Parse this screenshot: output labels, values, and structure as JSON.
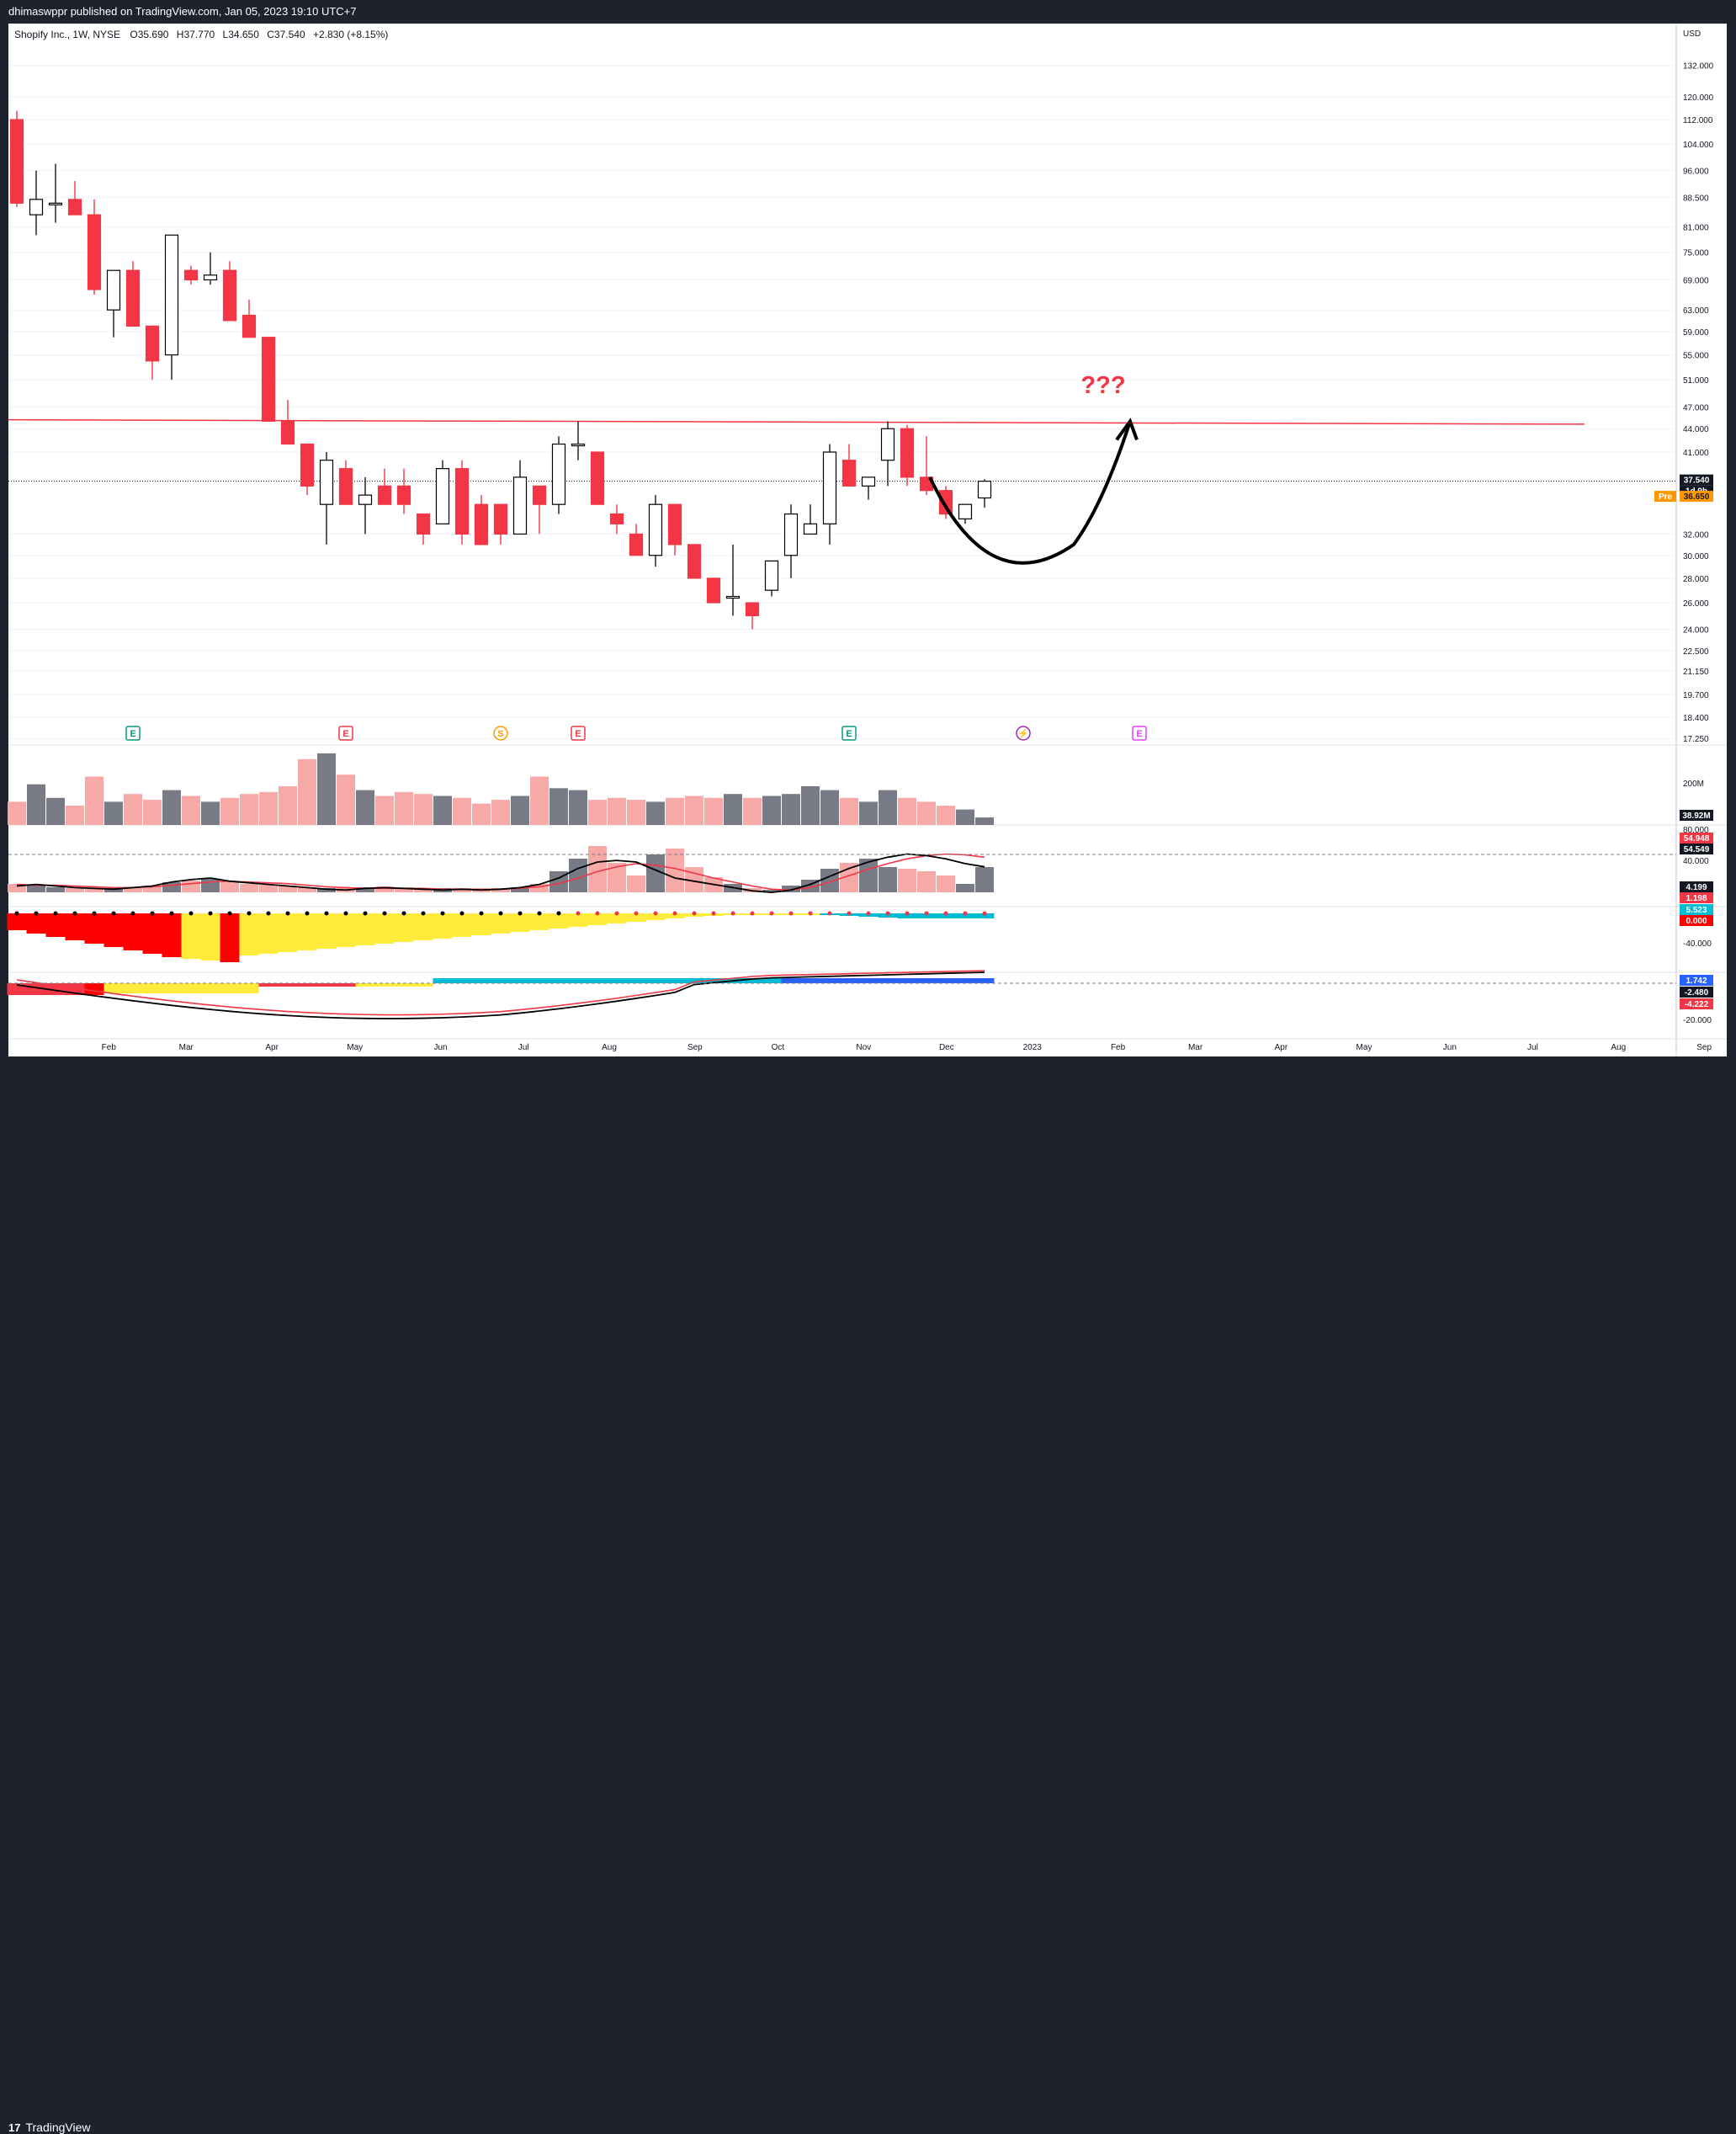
{
  "header": {
    "published": "dhimaswppr published on TradingView.com, Jan 05, 2023 19:10 UTC+7"
  },
  "footer": {
    "brand": "TradingView",
    "logo": "17"
  },
  "legend": {
    "symbol": "Shopify Inc., 1W, NYSE",
    "open": "O35.690",
    "high": "H37.770",
    "low": "L34.650",
    "close": "C37.540",
    "change": "+2.830 (+8.15%)"
  },
  "annotation": {
    "question": "???"
  },
  "events": [
    {
      "letter": "E",
      "color": "#089981",
      "date": "2022-02-14"
    },
    {
      "letter": "E",
      "color": "#f23645",
      "date": "2022-05-02"
    },
    {
      "letter": "S",
      "color": "#ff9800",
      "date": "2022-06-27"
    },
    {
      "letter": "E",
      "color": "#f23645",
      "date": "2022-07-25"
    },
    {
      "letter": "E",
      "color": "#089981",
      "date": "2022-10-31"
    },
    {
      "letter": "⚡",
      "color": "#9c27b0",
      "date": "2023-01-02"
    },
    {
      "letter": "E",
      "color": "#e040fb",
      "date": "2023-02-13"
    }
  ],
  "axis": {
    "currency": "USD",
    "price_ticks": [
      "132.000",
      "120.000",
      "112.000",
      "104.000",
      "96.000",
      "88.500",
      "81.000",
      "75.000",
      "69.000",
      "63.000",
      "59.000",
      "55.000",
      "51.000",
      "47.000",
      "44.000",
      "41.000",
      "32.000",
      "30.000",
      "28.000",
      "26.000",
      "24.000",
      "22.500",
      "21.150",
      "19.700",
      "18.400",
      "17.250"
    ],
    "price_ticks_values": [
      132,
      120,
      112,
      104,
      96,
      88.5,
      81,
      75,
      69,
      63,
      59,
      55,
      51,
      47,
      44,
      41,
      32,
      30,
      28,
      26,
      24,
      22.5,
      21.15,
      19.7,
      18.4,
      17.25
    ],
    "last_price_label": "37.540",
    "countdown_label": "1d 9h",
    "pre_tag": "Pre",
    "pre_label": "36.650",
    "volume_tick": "200M",
    "volume_last_label": "38.92M",
    "rsi_ticks": [
      "80.000",
      "40.000"
    ],
    "rsi_labels": [
      "54.948",
      "54.549"
    ],
    "osc_labels": [
      "4.199",
      "1.198"
    ],
    "squeeze_labels": [
      "5.523",
      "0.000"
    ],
    "lower_ticks": [
      "-40.000",
      "-20.000"
    ],
    "macd_labels": [
      "1.742",
      "-2.480",
      "-4.222"
    ],
    "x_labels": [
      "Feb",
      "Mar",
      "Apr",
      "May",
      "Jun",
      "Jul",
      "Aug",
      "Sep",
      "Oct",
      "Nov",
      "Dec",
      "2023",
      "Feb",
      "Mar",
      "Apr",
      "May",
      "Jun",
      "Jul",
      "Aug",
      "Sep"
    ],
    "x_label_dates": [
      "2022-02-01",
      "2022-03-01",
      "2022-04-01",
      "2022-05-01",
      "2022-06-01",
      "2022-07-01",
      "2022-08-01",
      "2022-09-01",
      "2022-10-01",
      "2022-11-01",
      "2022-12-01",
      "2023-01-01",
      "2023-02-01",
      "2023-03-01",
      "2023-04-01",
      "2023-05-01",
      "2023-06-01",
      "2023-07-01",
      "2023-08-01",
      "2023-09-01"
    ]
  },
  "colors": {
    "up": "#ffffff",
    "up_border": "#000000",
    "down": "#f23645",
    "volume_up": "#787b86",
    "volume_down": "#f7a9a7",
    "resistance": "#f23645",
    "annotation": "#f23645"
  },
  "chart_data": {
    "type": "candlestick",
    "title": "Shopify Inc., 1W, NYSE",
    "scale": "log",
    "ylim": [
      17.25,
      140
    ],
    "candles_week_start": "2022-01-03",
    "candles": [
      {
        "o": 112,
        "h": 115,
        "l": 86,
        "c": 87
      },
      {
        "o": 84,
        "h": 96,
        "l": 79,
        "c": 88
      },
      {
        "o": 87,
        "h": 98,
        "l": 82,
        "c": 87
      },
      {
        "o": 88,
        "h": 93,
        "l": 84,
        "c": 84
      },
      {
        "o": 84,
        "h": 88,
        "l": 66,
        "c": 67
      },
      {
        "o": 63,
        "h": 71,
        "l": 58,
        "c": 71
      },
      {
        "o": 71,
        "h": 73,
        "l": 60,
        "c": 60
      },
      {
        "o": 60,
        "h": 60,
        "l": 51,
        "c": 54
      },
      {
        "o": 55,
        "h": 79,
        "l": 51,
        "c": 79
      },
      {
        "o": 71,
        "h": 72,
        "l": 68,
        "c": 69
      },
      {
        "o": 69,
        "h": 75,
        "l": 68,
        "c": 70
      },
      {
        "o": 71,
        "h": 73,
        "l": 61,
        "c": 61
      },
      {
        "o": 62,
        "h": 65,
        "l": 58,
        "c": 58
      },
      {
        "o": 58,
        "h": 58,
        "l": 45,
        "c": 45
      },
      {
        "o": 45,
        "h": 48,
        "l": 42,
        "c": 42
      },
      {
        "o": 42,
        "h": 42,
        "l": 36,
        "c": 37
      },
      {
        "o": 35,
        "h": 41,
        "l": 31,
        "c": 40
      },
      {
        "o": 39,
        "h": 40,
        "l": 35,
        "c": 35
      },
      {
        "o": 35,
        "h": 38,
        "l": 32,
        "c": 36
      },
      {
        "o": 37,
        "h": 39,
        "l": 35,
        "c": 35
      },
      {
        "o": 37,
        "h": 39,
        "l": 34,
        "c": 35
      },
      {
        "o": 34,
        "h": 34,
        "l": 31,
        "c": 32
      },
      {
        "o": 33,
        "h": 40,
        "l": 33,
        "c": 39
      },
      {
        "o": 39,
        "h": 40,
        "l": 31,
        "c": 32
      },
      {
        "o": 35,
        "h": 36,
        "l": 31,
        "c": 31
      },
      {
        "o": 35,
        "h": 35,
        "l": 31,
        "c": 32
      },
      {
        "o": 32,
        "h": 40,
        "l": 32,
        "c": 38
      },
      {
        "o": 37,
        "h": 37,
        "l": 32,
        "c": 35
      },
      {
        "o": 35,
        "h": 43,
        "l": 34,
        "c": 42
      },
      {
        "o": 42,
        "h": 45,
        "l": 40,
        "c": 42
      },
      {
        "o": 41,
        "h": 41,
        "l": 35,
        "c": 35
      },
      {
        "o": 34,
        "h": 35,
        "l": 32,
        "c": 33
      },
      {
        "o": 32,
        "h": 33,
        "l": 30,
        "c": 30
      },
      {
        "o": 30,
        "h": 36,
        "l": 29,
        "c": 35
      },
      {
        "o": 35,
        "h": 35,
        "l": 30,
        "c": 31
      },
      {
        "o": 31,
        "h": 31,
        "l": 28,
        "c": 28
      },
      {
        "o": 28,
        "h": 28,
        "l": 26,
        "c": 26
      },
      {
        "o": 26.5,
        "h": 31,
        "l": 25,
        "c": 26.5
      },
      {
        "o": 26,
        "h": 26,
        "l": 24,
        "c": 25
      },
      {
        "o": 27,
        "h": 29.5,
        "l": 26.5,
        "c": 29.5
      },
      {
        "o": 30,
        "h": 35,
        "l": 28,
        "c": 34
      },
      {
        "o": 32,
        "h": 35,
        "l": 32,
        "c": 33
      },
      {
        "o": 33,
        "h": 42,
        "l": 31,
        "c": 41
      },
      {
        "o": 40,
        "h": 42,
        "l": 37,
        "c": 37
      },
      {
        "o": 37,
        "h": 38,
        "l": 35.5,
        "c": 38
      },
      {
        "o": 40,
        "h": 45,
        "l": 37,
        "c": 44
      },
      {
        "o": 44,
        "h": 44.5,
        "l": 37,
        "c": 38
      },
      {
        "o": 38,
        "h": 43,
        "l": 36,
        "c": 36.5
      },
      {
        "o": 36.5,
        "h": 37,
        "l": 33.5,
        "c": 34
      },
      {
        "o": 33.5,
        "h": 35,
        "l": 33,
        "c": 35
      },
      {
        "o": 35.69,
        "h": 37.77,
        "l": 34.65,
        "c": 37.54
      }
    ],
    "volume_M": [
      120,
      210,
      140,
      100,
      250,
      120,
      160,
      130,
      180,
      150,
      120,
      140,
      160,
      170,
      200,
      340,
      370,
      260,
      180,
      150,
      170,
      160,
      150,
      140,
      110,
      130,
      150,
      250,
      190,
      180,
      130,
      140,
      130,
      120,
      140,
      150,
      140,
      160,
      140,
      150,
      160,
      200,
      180,
      140,
      120,
      180,
      140,
      120,
      100,
      80,
      38.92
    ],
    "resistance_line": [
      {
        "date": "2021-12-27",
        "price": 45.2
      },
      {
        "date": "2023-07-24",
        "price": 44.6
      }
    ],
    "last_price": 37.54
  }
}
